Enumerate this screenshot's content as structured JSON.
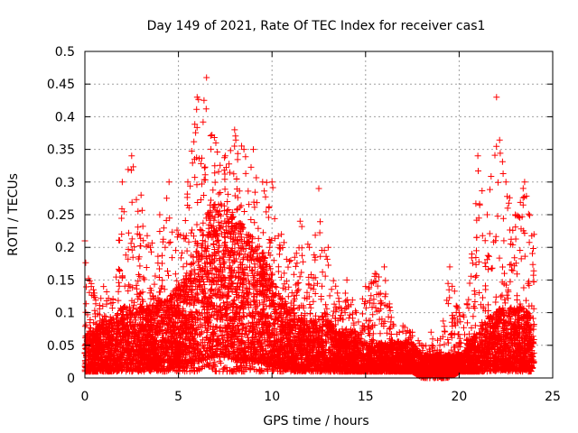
{
  "chart_data": {
    "type": "scatter",
    "title": "Day 149 of 2021, Rate Of TEC Index for receiver cas1",
    "xlabel": "GPS time / hours",
    "ylabel": "ROTI / TECUs",
    "xlim": [
      0,
      25
    ],
    "ylim": [
      0,
      0.5
    ],
    "xticks": [
      0,
      5,
      10,
      15,
      20,
      25
    ],
    "yticks": [
      0,
      0.05,
      0.1,
      0.15,
      0.2,
      0.25,
      0.3,
      0.35,
      0.4,
      0.45,
      0.5
    ],
    "xtick_labels": [
      "0",
      "5",
      "10",
      "15",
      "20",
      "25"
    ],
    "ytick_labels": [
      "0",
      "0.05",
      "0.1",
      "0.15",
      "0.2",
      "0.25",
      "0.3",
      "0.35",
      "0.4",
      "0.45",
      "0.5"
    ],
    "grid": true,
    "marker": "+",
    "color": "#ff0000",
    "series": [
      {
        "envelope_x": [
          0,
          0.5,
          1,
          1.5,
          2,
          2.5,
          3,
          3.5,
          4,
          4.5,
          5,
          5.5,
          6,
          6.5,
          7,
          7.5,
          8,
          8.5,
          9,
          9.5,
          10,
          10.5,
          11,
          11.5,
          12,
          12.5,
          13,
          13.5,
          14,
          14.5,
          15,
          15.5,
          16,
          16.5,
          17,
          17.5,
          18,
          18.5,
          19,
          19.5,
          20,
          20.5,
          21,
          21.5,
          22,
          22.5,
          23,
          23.5,
          24
        ],
        "envelope_upper": [
          0.21,
          0.13,
          0.14,
          0.12,
          0.3,
          0.34,
          0.28,
          0.2,
          0.25,
          0.3,
          0.22,
          0.3,
          0.43,
          0.46,
          0.36,
          0.34,
          0.38,
          0.35,
          0.35,
          0.3,
          0.3,
          0.22,
          0.18,
          0.24,
          0.2,
          0.29,
          0.2,
          0.13,
          0.15,
          0.1,
          0.14,
          0.16,
          0.17,
          0.08,
          0.08,
          0.07,
          0.05,
          0.07,
          0.06,
          0.17,
          0.1,
          0.12,
          0.34,
          0.25,
          0.43,
          0.3,
          0.25,
          0.3,
          0.22
        ],
        "envelope_lower": [
          0.01,
          0.01,
          0.01,
          0.01,
          0.01,
          0.01,
          0.01,
          0.01,
          0.01,
          0.01,
          0.01,
          0.01,
          0.01,
          0.02,
          0.01,
          0.01,
          0.01,
          0.01,
          0.01,
          0.01,
          0.01,
          0.01,
          0.01,
          0.01,
          0.01,
          0.01,
          0.01,
          0.01,
          0.01,
          0.01,
          0.01,
          0.01,
          0.01,
          0.01,
          0.01,
          0.01,
          0.0,
          0.0,
          0.0,
          0.0,
          0.01,
          0.01,
          0.01,
          0.01,
          0.01,
          0.01,
          0.01,
          0.01,
          0.01
        ],
        "density_center": [
          0.04,
          0.04,
          0.05,
          0.05,
          0.06,
          0.06,
          0.06,
          0.06,
          0.07,
          0.07,
          0.08,
          0.09,
          0.12,
          0.14,
          0.15,
          0.15,
          0.14,
          0.13,
          0.12,
          0.11,
          0.09,
          0.07,
          0.06,
          0.05,
          0.05,
          0.05,
          0.05,
          0.04,
          0.04,
          0.04,
          0.03,
          0.03,
          0.03,
          0.03,
          0.03,
          0.03,
          0.02,
          0.02,
          0.02,
          0.02,
          0.02,
          0.03,
          0.04,
          0.05,
          0.06,
          0.06,
          0.06,
          0.06,
          0.05
        ],
        "samples": 9000
      }
    ]
  }
}
